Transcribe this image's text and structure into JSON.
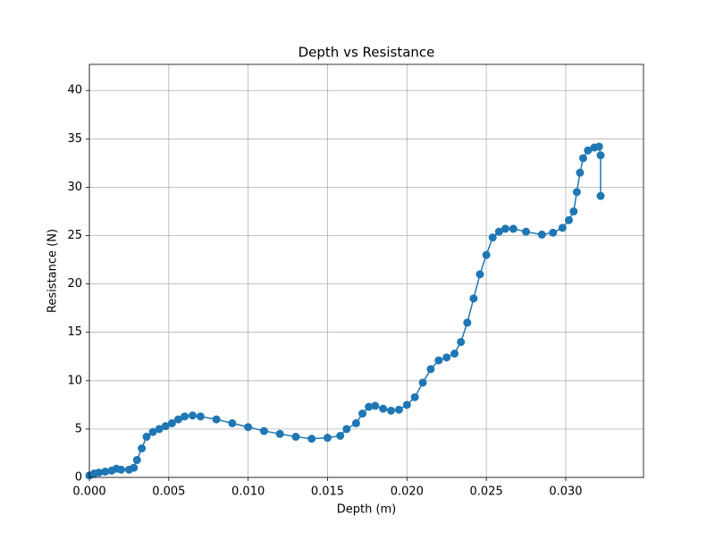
{
  "chart_data": {
    "type": "line",
    "title": "Depth vs Resistance",
    "x_label": "Depth (m)",
    "y_label": "Resistance (N)",
    "x": [
      0.0,
      0.0003,
      0.0006,
      0.001,
      0.0014,
      0.0017,
      0.002,
      0.0025,
      0.0028,
      0.003,
      0.0033,
      0.0036,
      0.004,
      0.0044,
      0.0048,
      0.0052,
      0.0056,
      0.006,
      0.0065,
      0.007,
      0.008,
      0.009,
      0.01,
      0.011,
      0.012,
      0.013,
      0.014,
      0.015,
      0.0158,
      0.0162,
      0.0168,
      0.0172,
      0.0176,
      0.018,
      0.0185,
      0.019,
      0.0195,
      0.02,
      0.0205,
      0.021,
      0.0215,
      0.022,
      0.0225,
      0.023,
      0.0234,
      0.0238,
      0.0242,
      0.0246,
      0.025,
      0.0254,
      0.0258,
      0.0262,
      0.0267,
      0.0275,
      0.0285,
      0.0292,
      0.0298,
      0.0302,
      0.0305,
      0.0307,
      0.0309,
      0.0311,
      0.0314,
      0.0318,
      0.0321,
      0.0322,
      0.0322
    ],
    "values": [
      0.2,
      0.4,
      0.5,
      0.6,
      0.7,
      0.9,
      0.8,
      0.8,
      1.0,
      1.8,
      3.0,
      4.2,
      4.7,
      5.0,
      5.3,
      5.6,
      6.0,
      6.3,
      6.4,
      6.3,
      6.0,
      5.6,
      5.2,
      4.8,
      4.5,
      4.2,
      4.0,
      4.1,
      4.3,
      5.0,
      5.6,
      6.6,
      7.3,
      7.4,
      7.1,
      6.9,
      7.0,
      7.5,
      8.3,
      9.8,
      11.2,
      12.1,
      12.4,
      12.8,
      14.0,
      16.0,
      18.5,
      21.0,
      23.0,
      24.8,
      25.4,
      25.7,
      25.7,
      25.4,
      25.1,
      25.3,
      25.8,
      26.6,
      27.5,
      29.5,
      31.5,
      33.0,
      33.8,
      34.1,
      34.2,
      33.3,
      29.1
    ],
    "color": "#1f77b4",
    "markers": true,
    "xlim": [
      0,
      0.0349
    ],
    "ylim": [
      0,
      42.7
    ],
    "xticks": [
      {
        "value": 0,
        "label": "0.000"
      },
      {
        "value": 0.005,
        "label": "0.005"
      },
      {
        "value": 0.01,
        "label": "0.010"
      },
      {
        "value": 0.015,
        "label": "0.015"
      },
      {
        "value": 0.02,
        "label": "0.020"
      },
      {
        "value": 0.025,
        "label": "0.025"
      },
      {
        "value": 0.03,
        "label": "0.030"
      }
    ],
    "yticks": [
      0,
      5,
      10,
      15,
      20,
      25,
      30,
      35,
      40
    ],
    "grid": true
  }
}
